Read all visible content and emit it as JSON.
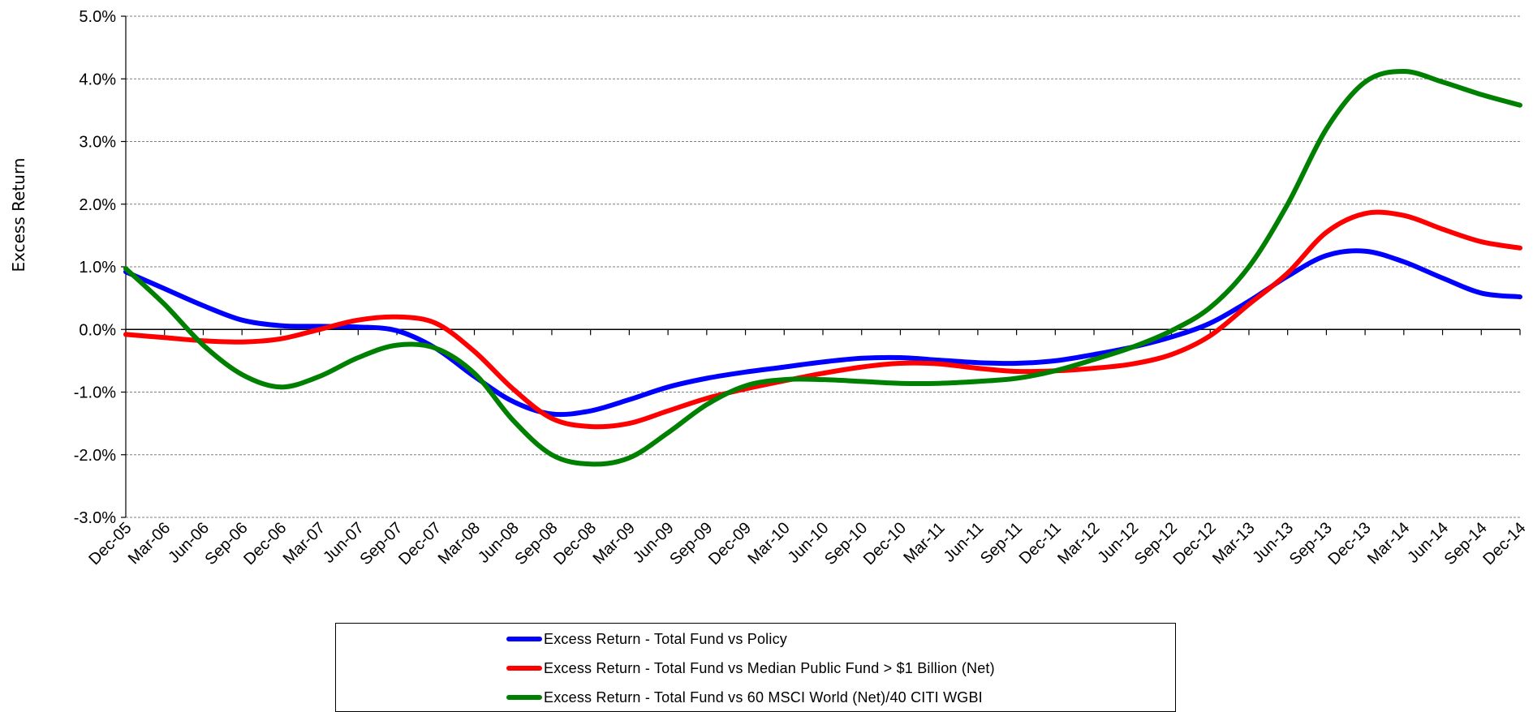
{
  "chart_data": {
    "type": "line",
    "title": "",
    "xlabel": "",
    "ylabel": "Excess Return",
    "y_tick_labels": [
      "5.0%",
      "4.0%",
      "3.0%",
      "2.0%",
      "1.0%",
      "0.0%",
      "-1.0%",
      "-2.0%",
      "-3.0%"
    ],
    "ylim": [
      -3.0,
      5.0
    ],
    "grid": true,
    "legend_position": "bottom",
    "categories": [
      "Dec-05",
      "Mar-06",
      "Jun-06",
      "Sep-06",
      "Dec-06",
      "Mar-07",
      "Jun-07",
      "Sep-07",
      "Dec-07",
      "Mar-08",
      "Jun-08",
      "Sep-08",
      "Dec-08",
      "Mar-09",
      "Jun-09",
      "Sep-09",
      "Dec-09",
      "Mar-10",
      "Jun-10",
      "Sep-10",
      "Dec-10",
      "Mar-11",
      "Jun-11",
      "Sep-11",
      "Dec-11",
      "Mar-12",
      "Jun-12",
      "Sep-12",
      "Dec-12",
      "Mar-13",
      "Jun-13",
      "Sep-13",
      "Dec-13",
      "Mar-14",
      "Jun-14",
      "Sep-14",
      "Dec-14"
    ],
    "series": [
      {
        "name": "Excess Return - Total Fund vs Policy",
        "color": "#0000ff",
        "values": [
          0.92,
          0.65,
          0.38,
          0.15,
          0.06,
          0.05,
          0.04,
          -0.02,
          -0.3,
          -0.75,
          -1.15,
          -1.35,
          -1.3,
          -1.12,
          -0.92,
          -0.78,
          -0.68,
          -0.6,
          -0.52,
          -0.46,
          -0.45,
          -0.49,
          -0.53,
          -0.54,
          -0.5,
          -0.4,
          -0.28,
          -0.12,
          0.1,
          0.45,
          0.85,
          1.18,
          1.25,
          1.08,
          0.82,
          0.58,
          0.52
        ]
      },
      {
        "name": "Excess Return - Total Fund vs Median Public Fund > $1 Billion (Net)",
        "color": "#ff0000",
        "values": [
          -0.08,
          -0.13,
          -0.18,
          -0.2,
          -0.15,
          0.0,
          0.15,
          0.2,
          0.1,
          -0.35,
          -0.95,
          -1.42,
          -1.55,
          -1.5,
          -1.3,
          -1.1,
          -0.95,
          -0.82,
          -0.7,
          -0.6,
          -0.54,
          -0.55,
          -0.62,
          -0.67,
          -0.66,
          -0.62,
          -0.55,
          -0.4,
          -0.1,
          0.4,
          0.9,
          1.55,
          1.85,
          1.82,
          1.6,
          1.4,
          1.3
        ]
      },
      {
        "name": "Excess Return - Total Fund vs 60 MSCI World (Net)/40 CITI WGBI",
        "color": "#008000",
        "values": [
          0.97,
          0.4,
          -0.25,
          -0.72,
          -0.92,
          -0.75,
          -0.45,
          -0.25,
          -0.3,
          -0.7,
          -1.45,
          -2.0,
          -2.15,
          -2.05,
          -1.65,
          -1.2,
          -0.9,
          -0.8,
          -0.8,
          -0.83,
          -0.86,
          -0.86,
          -0.83,
          -0.78,
          -0.66,
          -0.48,
          -0.28,
          -0.02,
          0.35,
          1.0,
          2.0,
          3.2,
          3.95,
          4.12,
          3.95,
          3.75,
          3.58
        ]
      }
    ]
  }
}
